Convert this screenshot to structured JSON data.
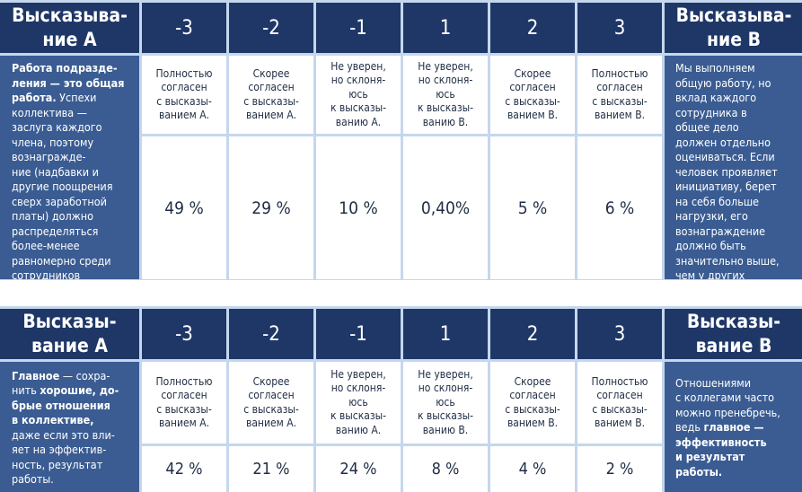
{
  "tables": [
    {
      "statement_a_header": "Высказыва-\nние А",
      "statement_b_header": "Высказыва-\nние В",
      "scale": [
        "-3",
        "-2",
        "-1",
        "1",
        "2",
        "3"
      ],
      "descriptions": [
        "Полностью\nсогласен\nс высказы-\nванием А.",
        "Скорее\nсогласен\nс высказы-\nванием А.",
        "Не уверен,\nно склоня-\nюсь\nк высказы-\nванию А.",
        "Не уверен,\nно склоня-\nюсь\nк высказы-\nванию В.",
        "Скорее\nсогласен\nс высказы-\nванием В.",
        "Полностью\nсогласен\nс высказы-\nванием В."
      ],
      "values": [
        "49 %",
        "29 %",
        "10 %",
        "0,40%",
        "5 %",
        "6 %"
      ],
      "statement_a_text": [
        {
          "text": "Работа подразде-\nления — это общая\nработа.",
          "bold": true
        },
        {
          "text": " Успехи\nколлектива —\nзаслуга каждого\nчлена, поэтому\nвознагражде-\nние (надбавки и\nдругие поощрения\nсверх заработной\nплаты) должно\nраспределяться\nболее-менее\nравномерно среди\nсотрудников",
          "bold": false
        }
      ],
      "statement_b_text": [
        {
          "text": "Мы выполняем\nобщую работу, но\nвклад каждого\nсотрудника в\nобщее дело\nдолжен отдельно\nоцениваться.",
          "bold": false
        },
        {
          "text": " Если\nчеловек проявляет\nинициативу, берет\nна себя больше\nнагрузки, его\nвознаграждение\nдолжно быть\nзначительно выше,\nчем у других",
          "bold": false
        }
      ]
    },
    {
      "statement_a_header": "Высказы-\nвание А",
      "statement_b_header": "Высказы-\nвание В",
      "scale": [
        "-3",
        "-2",
        "-1",
        "1",
        "2",
        "3"
      ],
      "descriptions": [
        "Полностью\nсогласен\nс высказы-\nванием А.",
        "Скорее\nсогласен\nс высказы-\nванием А.",
        "Не уверен,\nно склоня-\nюсь\nк высказы-\nванию А.",
        "Не уверен,\nно склоня-\nюсь\nк высказы-\nванию В.",
        "Скорее\nсогласен\nс высказы-\nванием В.",
        "Полностью\nсогласен\nс высказы-\nванием В."
      ],
      "values": [
        "42 %",
        "21 %",
        "24 %",
        "8 %",
        "4 %",
        "2 %"
      ],
      "statement_a_text": [
        {
          "text": "Главное",
          "bold": true
        },
        {
          "text": " — сохра-\nнить ",
          "bold": false
        },
        {
          "text": "хорошие, до-\nбрые отношения\nв коллективе,",
          "bold": true
        },
        {
          "text": "\nдаже если это вли-\nяет на эффектив-\nность, результат\nработы.",
          "bold": false
        }
      ],
      "statement_b_text": [
        {
          "text": "Отношениями\nс коллегами часто\nможно пренебречь,\nведь ",
          "bold": false
        },
        {
          "text": "главное —\nэффективность\nи результат\nработы.",
          "bold": true
        }
      ]
    }
  ],
  "colors": {
    "header_bg": "#1f3767",
    "side_bg": "#3a5c92",
    "grid_bg": "#c5d7ec",
    "cell_bg": "#ffffff",
    "text_dark": "#1f2d44"
  }
}
